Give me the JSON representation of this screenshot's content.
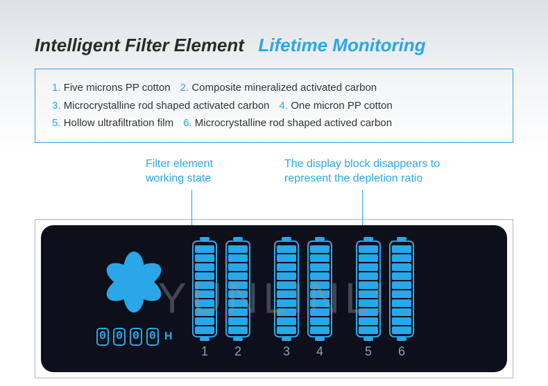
{
  "title": {
    "primary": "Intelligent Filter Element",
    "accent": "Lifetime Monitoring"
  },
  "legend": [
    {
      "n": "1.",
      "text": "Five microns PP cotton"
    },
    {
      "n": "2.",
      "text": "Composite mineralized activated carbon"
    },
    {
      "n": "3.",
      "text": "Microcrystalline rod shaped activated carbon"
    },
    {
      "n": "4.",
      "text": "One micron PP cotton"
    },
    {
      "n": "5.",
      "text": "Hollow ultrafiltration film"
    },
    {
      "n": "6.",
      "text": "Microcrystalline rod shaped actived carbon"
    }
  ],
  "callouts": {
    "left_line1": "Filter element",
    "left_line2": "working state",
    "right_line1": "The display block disappears to",
    "right_line2": "represent the depletion ratio"
  },
  "counter": {
    "d1": "0",
    "d2": "0",
    "d3": "0",
    "d4": "0",
    "unit": "H"
  },
  "filters": {
    "total_segments": 10,
    "cols": [
      {
        "label": "1",
        "filled": 10
      },
      {
        "label": "2",
        "filled": 10
      },
      {
        "label": "3",
        "filled": 10
      },
      {
        "label": "4",
        "filled": 10
      },
      {
        "label": "5",
        "filled": 10
      },
      {
        "label": "6",
        "filled": 10
      }
    ]
  },
  "watermark": "YUNLINLI",
  "colors": {
    "accent": "#2aa7e8",
    "display_bg": "#0d0f1a",
    "frame_border": "#b0b6bb",
    "label_muted": "#8fa0b0",
    "title_dark": "#2a2a2a",
    "watermark": "rgba(140,150,160,0.42)"
  }
}
